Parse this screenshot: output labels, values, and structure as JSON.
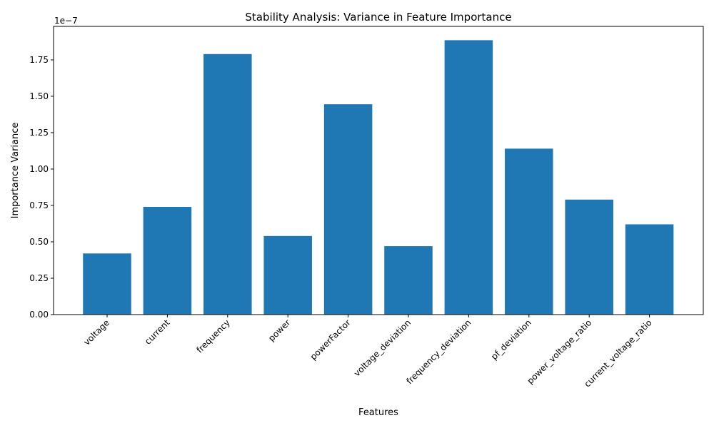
{
  "chart_data": {
    "type": "bar",
    "title": "Stability Analysis: Variance in Feature Importance",
    "xlabel": "Features",
    "ylabel": "Importance Variance",
    "offset_label": "1e−7",
    "scale_exponent": -7,
    "categories": [
      "voltage",
      "current",
      "frequency",
      "power",
      "powerFactor",
      "voltage_deviation",
      "frequency_deviation",
      "pf_deviation",
      "power_voltage_ratio",
      "current_voltage_ratio"
    ],
    "values": [
      4.2e-08,
      7.4e-08,
      1.79e-07,
      5.4e-08,
      1.445e-07,
      4.7e-08,
      1.885e-07,
      1.14e-07,
      7.9e-08,
      6.2e-08
    ],
    "yticks": [
      "0.00",
      "0.25",
      "0.50",
      "0.75",
      "1.00",
      "1.25",
      "1.50",
      "1.75"
    ],
    "ytick_values": [
      0,
      0.25,
      0.5,
      0.75,
      1.0,
      1.25,
      1.5,
      1.75
    ],
    "ylim": [
      0,
      1.98e-07
    ],
    "grid": false,
    "bar_color": "#1f77b4"
  }
}
